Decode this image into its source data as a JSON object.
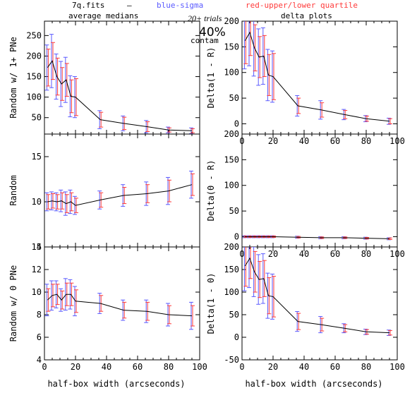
{
  "header": {
    "file": "7q.fits",
    "dash": "—",
    "blue": "blue-sigma",
    "red": "red-upper/lower quartile",
    "left_title": "average medians",
    "right_title": "delta plots",
    "trials": "20+ trials",
    "percent": "40%",
    "contam": "contam"
  },
  "colors": {
    "sigma": "#5a5aff",
    "quartile": "#ff3b3b",
    "line": "#000000"
  },
  "chart_data": [
    {
      "type": "line",
      "panel": "top-left",
      "title": "",
      "xlabel": "",
      "ylabel": "Random w/ 1+ PNe",
      "xlim": [
        0,
        100
      ],
      "ylim": [
        10,
        285
      ],
      "xticks": [
        "0",
        "20",
        "40",
        "60",
        "80",
        "100"
      ],
      "xtick_labels_shown": false,
      "yticks": [
        50,
        100,
        150,
        200,
        250
      ],
      "x": [
        2,
        5,
        8,
        11,
        14,
        17,
        20,
        36,
        51,
        66,
        80,
        95
      ],
      "y": [
        172,
        188,
        150,
        132,
        142,
        102,
        100,
        45,
        36,
        28,
        20,
        18
      ],
      "sigma_err": [
        55,
        65,
        55,
        55,
        55,
        50,
        50,
        22,
        18,
        15,
        7,
        7
      ],
      "quartile_err": [
        45,
        45,
        45,
        40,
        40,
        40,
        45,
        18,
        15,
        12,
        5,
        5
      ]
    },
    {
      "type": "line",
      "panel": "top-right",
      "title": "",
      "xlabel": "",
      "ylabel": "Delta(1 - R)",
      "xlim": [
        0,
        100
      ],
      "ylim": [
        -20,
        200
      ],
      "xticks": [
        "0",
        "20",
        "40",
        "60",
        "80",
        "100"
      ],
      "xtick_labels_shown": true,
      "yticks": [
        0,
        50,
        100,
        150,
        200
      ],
      "x": [
        2,
        5,
        8,
        11,
        14,
        17,
        20,
        36,
        51,
        66,
        80,
        95
      ],
      "y": [
        162,
        178,
        148,
        130,
        132,
        95,
        92,
        35,
        27,
        18,
        10,
        5
      ],
      "sigma_err": [
        55,
        65,
        55,
        55,
        55,
        50,
        50,
        20,
        18,
        10,
        6,
        6
      ],
      "quartile_err": [
        45,
        45,
        45,
        40,
        40,
        40,
        45,
        15,
        14,
        8,
        5,
        5
      ]
    },
    {
      "type": "line",
      "panel": "middle-left",
      "title": "",
      "xlabel": "",
      "ylabel": "Random",
      "xlim": [
        0,
        100
      ],
      "ylim": [
        5,
        17.5
      ],
      "xticks": [
        "0",
        "20",
        "40",
        "60",
        "80",
        "100"
      ],
      "xtick_labels_shown": false,
      "yticks": [
        5,
        10,
        15
      ],
      "x": [
        2,
        5,
        8,
        11,
        14,
        17,
        20,
        36,
        51,
        66,
        80,
        95
      ],
      "y": [
        10,
        10.1,
        10,
        10.1,
        9.8,
        10,
        9.6,
        10.2,
        10.7,
        10.9,
        11.2,
        11.9
      ],
      "sigma_err": [
        1,
        1,
        1,
        1.2,
        1.3,
        1.3,
        1,
        1,
        1.2,
        1.3,
        1.5,
        1.5
      ],
      "quartile_err": [
        0.8,
        0.8,
        0.8,
        0.9,
        1,
        1,
        0.8,
        0.8,
        0.9,
        1,
        1.2,
        1.2
      ]
    },
    {
      "type": "line",
      "panel": "middle-right",
      "title": "",
      "xlabel": "",
      "ylabel": "Delta(0 - R)",
      "xlim": [
        0,
        100
      ],
      "ylim": [
        -20,
        200
      ],
      "xticks": [
        "0",
        "20",
        "40",
        "60",
        "80",
        "100"
      ],
      "xtick_labels_shown": true,
      "yticks": [
        0,
        50,
        100,
        150,
        200
      ],
      "x": [
        2,
        5,
        8,
        11,
        14,
        17,
        20,
        36,
        51,
        66,
        80,
        95
      ],
      "y": [
        0,
        0,
        0,
        0,
        0,
        0,
        0,
        -1,
        -2,
        -2,
        -3,
        -4
      ],
      "sigma_err": [
        2,
        2,
        2,
        2,
        2,
        2,
        2,
        2,
        2,
        2,
        2,
        2
      ],
      "quartile_err": [
        1.5,
        1.5,
        1.5,
        1.5,
        1.5,
        1.5,
        1.5,
        1.5,
        1.5,
        1.5,
        1.5,
        1.5
      ]
    },
    {
      "type": "line",
      "panel": "bottom-left",
      "title": "",
      "xlabel": "half-box width (arcseconds)",
      "ylabel": "Random w/ 0 PNe",
      "xlim": [
        0,
        100
      ],
      "ylim": [
        4,
        14
      ],
      "xticks": [
        "0",
        "20",
        "40",
        "60",
        "80",
        "100"
      ],
      "xtick_labels_shown": true,
      "yticks": [
        4,
        6,
        8,
        10,
        12,
        14
      ],
      "x": [
        2,
        5,
        8,
        11,
        14,
        17,
        20,
        36,
        51,
        66,
        80,
        95
      ],
      "y": [
        9.3,
        9.7,
        9.8,
        9.3,
        9.8,
        9.8,
        9.2,
        9,
        8.4,
        8.3,
        8,
        7.9
      ],
      "sigma_err": [
        1.4,
        1.3,
        1.2,
        1,
        1.4,
        1.3,
        1.3,
        0.9,
        0.9,
        1,
        1,
        1.2
      ],
      "quartile_err": [
        1,
        1,
        0.9,
        0.8,
        1,
        1,
        1,
        0.7,
        0.7,
        0.8,
        0.8,
        0.9
      ]
    },
    {
      "type": "line",
      "panel": "bottom-right",
      "title": "",
      "xlabel": "half-box width (arcseconds)",
      "ylabel": "Delta(1 - 0)",
      "xlim": [
        0,
        100
      ],
      "ylim": [
        -50,
        200
      ],
      "xticks": [
        "0",
        "20",
        "40",
        "60",
        "80",
        "100"
      ],
      "xtick_labels_shown": true,
      "yticks": [
        -50,
        0,
        50,
        100,
        150,
        200
      ],
      "x": [
        2,
        5,
        8,
        11,
        14,
        17,
        20,
        36,
        51,
        66,
        80,
        95
      ],
      "y": [
        158,
        175,
        145,
        128,
        130,
        92,
        90,
        35,
        28,
        20,
        12,
        10
      ],
      "sigma_err": [
        55,
        65,
        55,
        55,
        55,
        50,
        50,
        22,
        18,
        10,
        6,
        6
      ],
      "quartile_err": [
        45,
        45,
        45,
        40,
        40,
        40,
        45,
        18,
        14,
        8,
        5,
        5
      ]
    }
  ]
}
